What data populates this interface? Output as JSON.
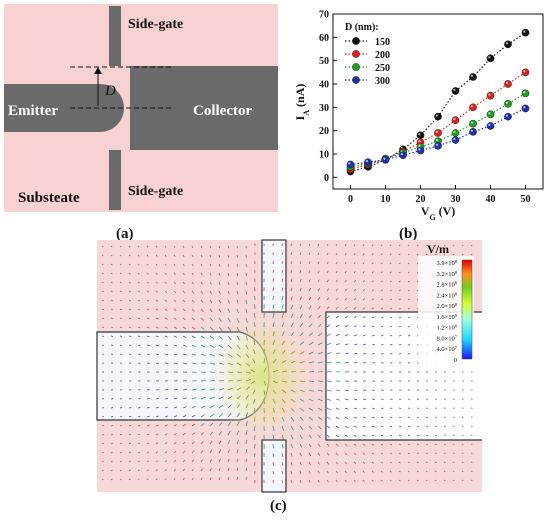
{
  "panel_a": {
    "label": "(a)",
    "top_gate_label": "Side-gate",
    "bottom_gate_label": "Side-gate",
    "emitter_label": "Emitter",
    "collector_label": "Collector",
    "substrate_label": "Substeate",
    "gap_label": "D",
    "colors": {
      "substrate": "#f8d2d2",
      "metal": "#6a6a6a"
    }
  },
  "panel_b": {
    "label": "(b)",
    "chart_data": {
      "type": "scatter",
      "xlabel_main": "V",
      "xlabel_sub": "G",
      "xlabel_unit": " (V)",
      "ylabel_main": "I",
      "ylabel_sub": "A",
      "ylabel_unit": " (nA)",
      "xlim": [
        -5,
        55
      ],
      "ylim": [
        -5,
        70
      ],
      "xticks": [
        0,
        10,
        20,
        30,
        40,
        50
      ],
      "yticks": [
        0,
        10,
        20,
        30,
        40,
        50,
        60,
        70
      ],
      "legend_title": "D (nm):",
      "legend_position": "top-left",
      "x": [
        0,
        5,
        10,
        15,
        20,
        25,
        30,
        35,
        40,
        45,
        50
      ],
      "series": [
        {
          "name": "150",
          "color": "#111111",
          "values": [
            2.5,
            4.5,
            7.5,
            12,
            18,
            26,
            37,
            43,
            51,
            57,
            62
          ]
        },
        {
          "name": "200",
          "color": "#e02020",
          "values": [
            3.5,
            5.5,
            8,
            11,
            15,
            19,
            24.5,
            30,
            35,
            40,
            45
          ]
        },
        {
          "name": "250",
          "color": "#20a020",
          "values": [
            4.5,
            6,
            8,
            10.5,
            13,
            15.5,
            19,
            23,
            27,
            31.5,
            36
          ]
        },
        {
          "name": "300",
          "color": "#1f2fb0",
          "values": [
            5.5,
            6.5,
            7.5,
            9.5,
            11.5,
            13.5,
            16,
            19.5,
            22,
            26,
            29.5
          ]
        }
      ]
    }
  },
  "panel_c": {
    "label": "(c)",
    "colorbar_title": "V/m",
    "colorbar_ticks": [
      {
        "text": "3.9×10",
        "exp": "8"
      },
      {
        "text": "3.2×10",
        "exp": "8"
      },
      {
        "text": "2.8×10",
        "exp": "8"
      },
      {
        "text": "2.4×10",
        "exp": "8"
      },
      {
        "text": "2.0×10",
        "exp": "8"
      },
      {
        "text": "1.6×10",
        "exp": "8"
      },
      {
        "text": "1.2×10",
        "exp": "8"
      },
      {
        "text": "8.0×10",
        "exp": "7"
      },
      {
        "text": "4.0×10",
        "exp": "7"
      },
      {
        "text": "0",
        "exp": ""
      }
    ]
  }
}
